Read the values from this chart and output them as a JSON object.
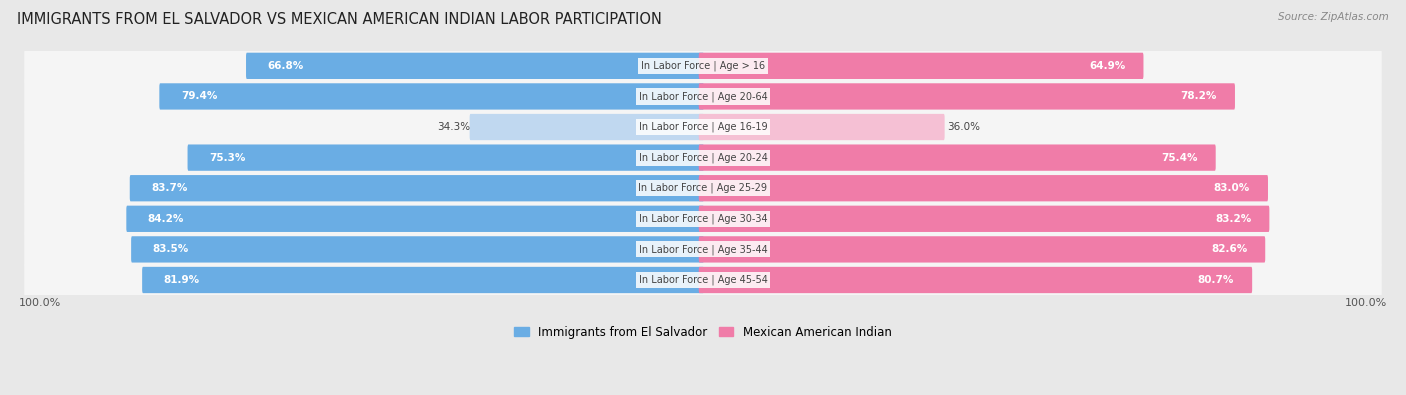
{
  "title": "IMMIGRANTS FROM EL SALVADOR VS MEXICAN AMERICAN INDIAN LABOR PARTICIPATION",
  "source": "Source: ZipAtlas.com",
  "categories": [
    "In Labor Force | Age > 16",
    "In Labor Force | Age 20-64",
    "In Labor Force | Age 16-19",
    "In Labor Force | Age 20-24",
    "In Labor Force | Age 25-29",
    "In Labor Force | Age 30-34",
    "In Labor Force | Age 35-44",
    "In Labor Force | Age 45-54"
  ],
  "left_values": [
    66.8,
    79.4,
    34.3,
    75.3,
    83.7,
    84.2,
    83.5,
    81.9
  ],
  "right_values": [
    64.9,
    78.2,
    36.0,
    75.4,
    83.0,
    83.2,
    82.6,
    80.7
  ],
  "left_color": "#6aade4",
  "right_color": "#f07ca8",
  "left_color_light": "#c0d8f0",
  "right_color_light": "#f5c0d4",
  "left_label": "Immigrants from El Salvador",
  "right_label": "Mexican American Indian",
  "background_color": "#e8e8e8",
  "row_bg_color": "#f0f0f0",
  "max_val": 100.0,
  "threshold": 50.0,
  "bottom_label": "100.0%"
}
